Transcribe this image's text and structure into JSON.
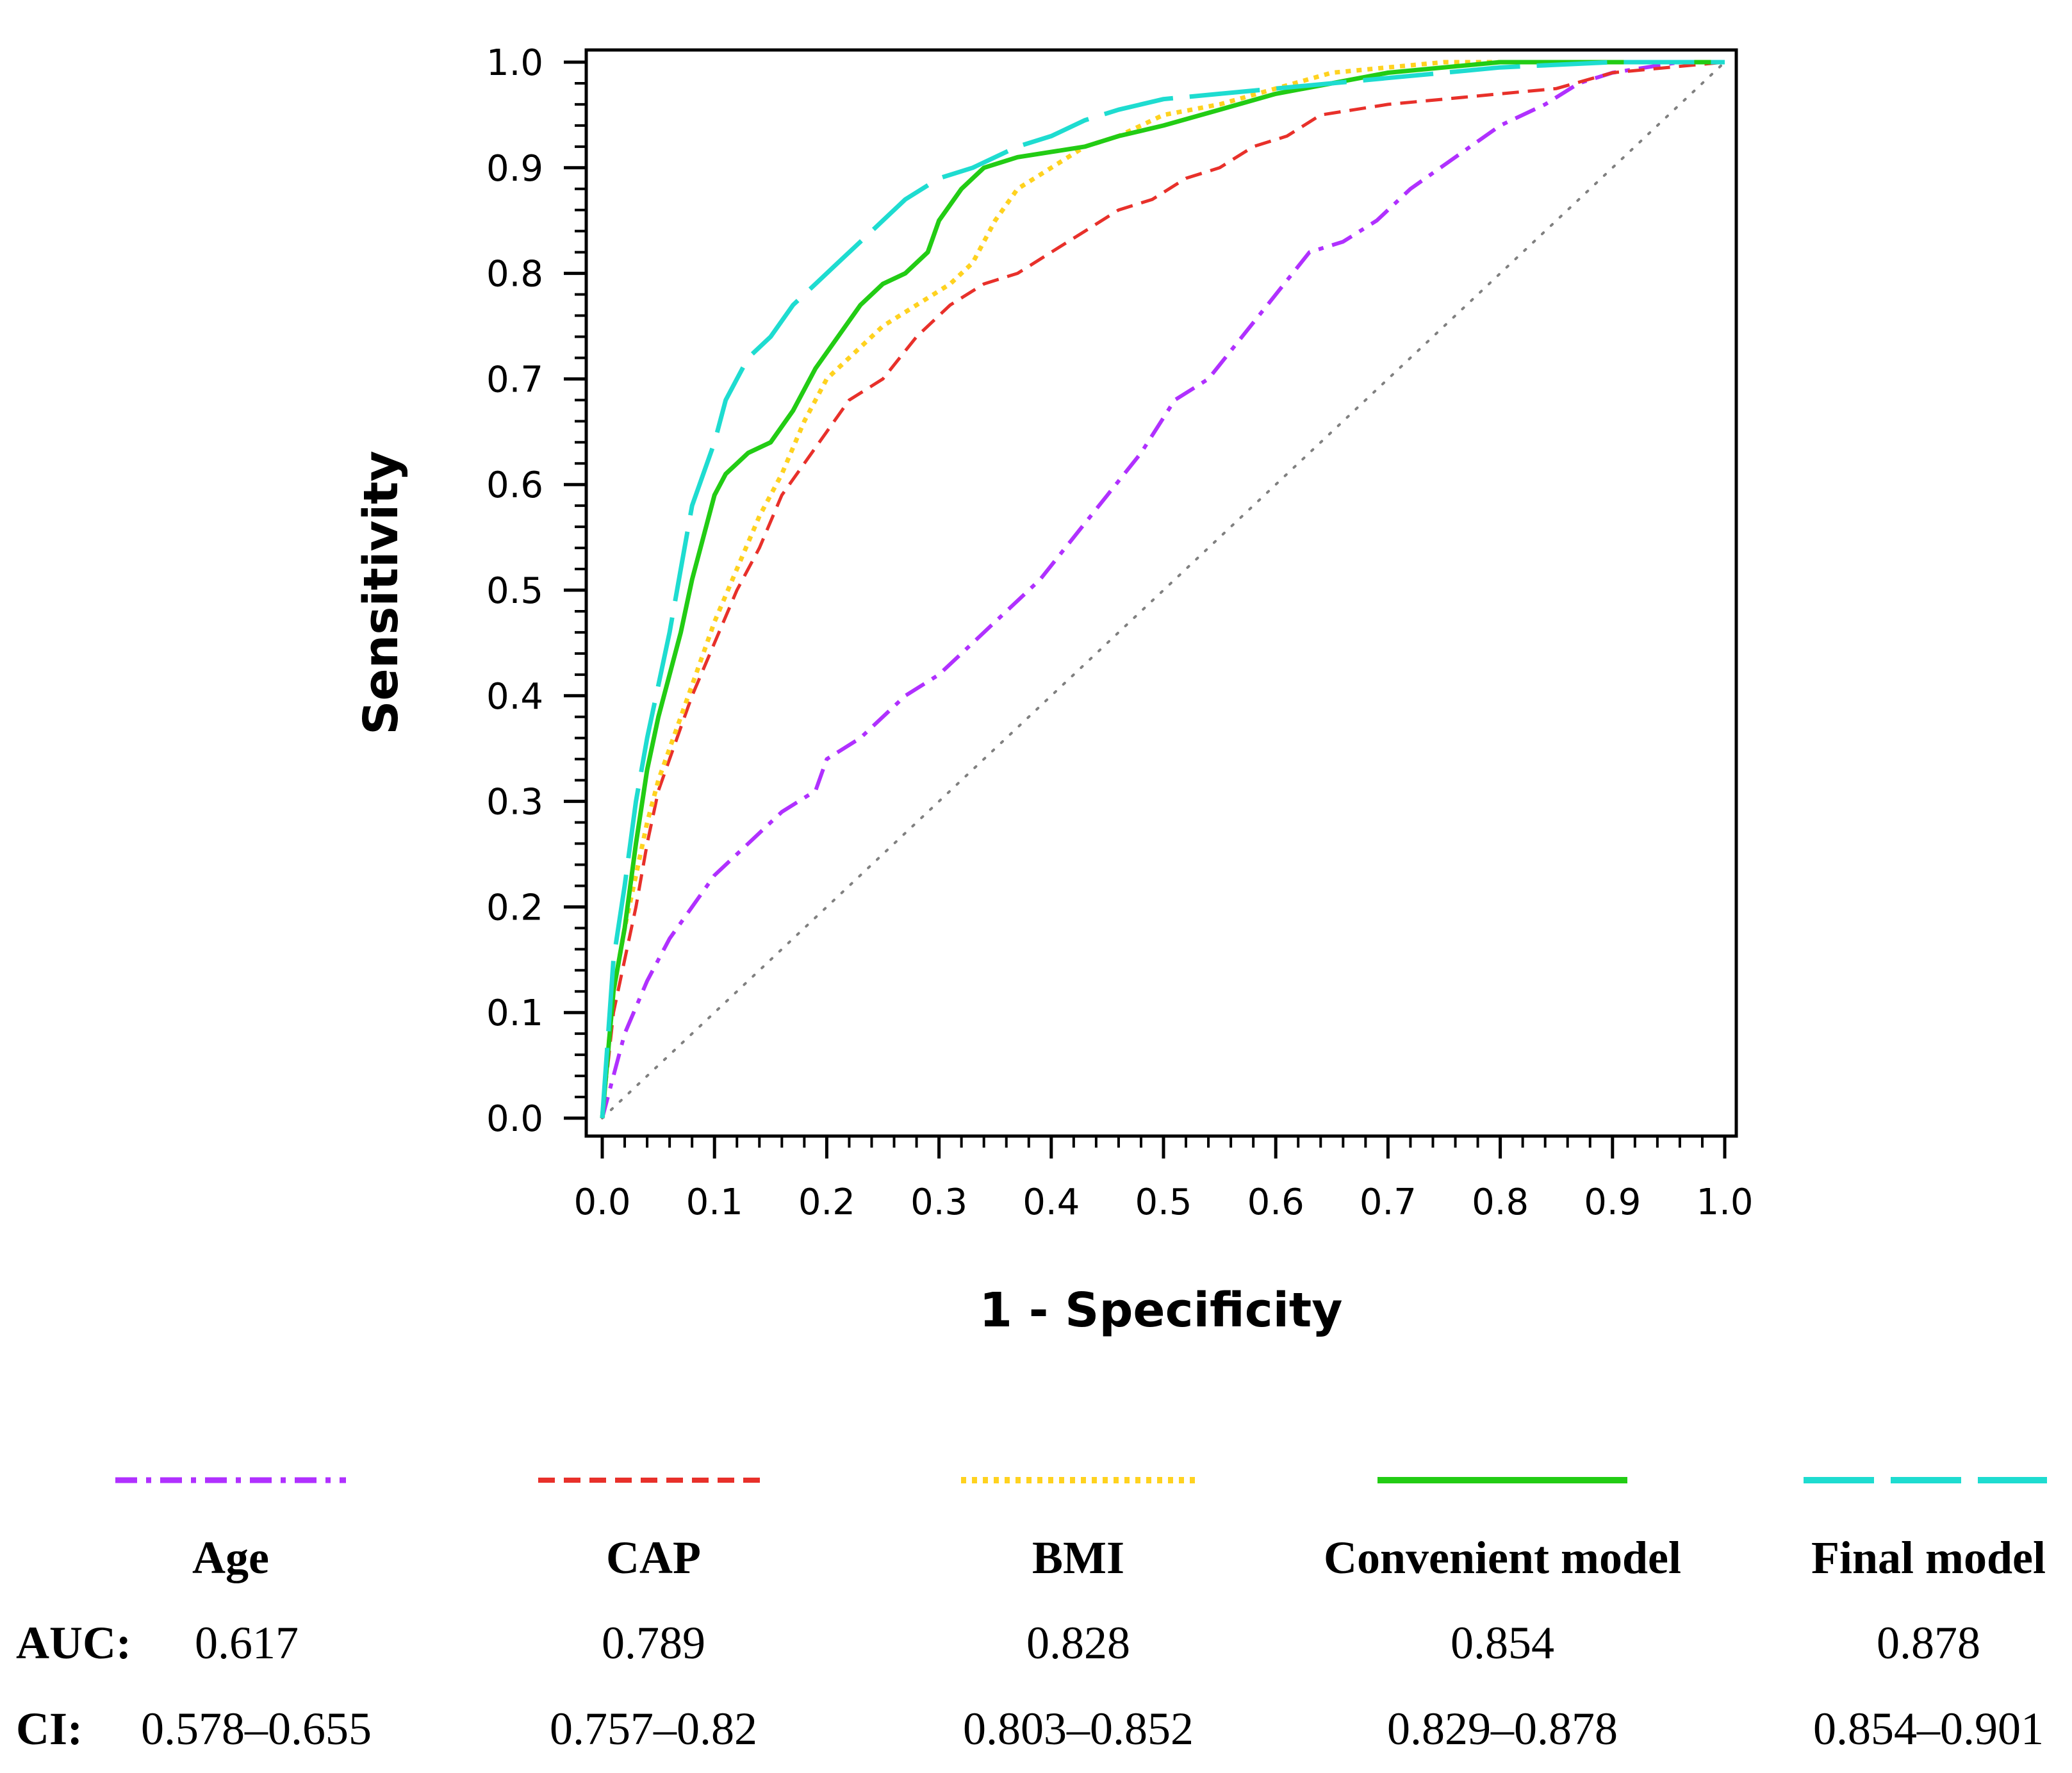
{
  "chart_data": {
    "type": "line",
    "xlabel": "1 - Specificity",
    "ylabel": "Sensitivity",
    "xlim": [
      0,
      1
    ],
    "ylim": [
      0,
      1
    ],
    "x_ticks": [
      "0.0",
      "0.1",
      "0.2",
      "0.3",
      "0.4",
      "0.5",
      "0.6",
      "0.7",
      "0.8",
      "0.9",
      "1.0"
    ],
    "y_ticks": [
      "0.0",
      "0.1",
      "0.2",
      "0.3",
      "0.4",
      "0.5",
      "0.6",
      "0.7",
      "0.8",
      "0.9",
      "1.0"
    ],
    "grid": false,
    "legend_placement": "bottom",
    "reference_line": {
      "x": [
        0,
        1
      ],
      "y": [
        0,
        1
      ],
      "color": "#808080",
      "style": "dotted"
    },
    "row_labels": {
      "auc": "AUC:",
      "ci": "CI:"
    },
    "series": [
      {
        "name": "Age",
        "auc": "0.617",
        "ci": "0.578–0.655",
        "color": "#b030ff",
        "style": "dashdot",
        "x": [
          0,
          0.01,
          0.02,
          0.04,
          0.06,
          0.08,
          0.1,
          0.13,
          0.16,
          0.19,
          0.2,
          0.23,
          0.27,
          0.3,
          0.33,
          0.36,
          0.39,
          0.42,
          0.45,
          0.48,
          0.51,
          0.54,
          0.57,
          0.6,
          0.63,
          0.66,
          0.69,
          0.72,
          0.76,
          0.8,
          0.84,
          0.87,
          0.9,
          0.93,
          0.96,
          1.0
        ],
        "y": [
          0,
          0.04,
          0.08,
          0.13,
          0.17,
          0.2,
          0.23,
          0.26,
          0.29,
          0.31,
          0.34,
          0.36,
          0.4,
          0.42,
          0.45,
          0.48,
          0.51,
          0.55,
          0.59,
          0.63,
          0.68,
          0.7,
          0.74,
          0.78,
          0.82,
          0.83,
          0.85,
          0.88,
          0.91,
          0.94,
          0.96,
          0.98,
          0.99,
          0.995,
          1.0,
          1.0
        ]
      },
      {
        "name": "CAP",
        "auc": "0.789",
        "ci": "0.757–0.82",
        "color": "#e8302a",
        "style": "dashed",
        "x": [
          0,
          0.01,
          0.02,
          0.03,
          0.04,
          0.05,
          0.06,
          0.07,
          0.08,
          0.1,
          0.12,
          0.14,
          0.16,
          0.18,
          0.2,
          0.22,
          0.25,
          0.28,
          0.31,
          0.34,
          0.37,
          0.4,
          0.43,
          0.46,
          0.49,
          0.52,
          0.55,
          0.58,
          0.61,
          0.64,
          0.67,
          0.7,
          0.75,
          0.8,
          0.85,
          0.9,
          0.95,
          1.0
        ],
        "y": [
          0,
          0.1,
          0.15,
          0.2,
          0.26,
          0.31,
          0.34,
          0.37,
          0.4,
          0.45,
          0.5,
          0.54,
          0.59,
          0.62,
          0.65,
          0.68,
          0.7,
          0.74,
          0.77,
          0.79,
          0.8,
          0.82,
          0.84,
          0.86,
          0.87,
          0.89,
          0.9,
          0.92,
          0.93,
          0.95,
          0.955,
          0.96,
          0.965,
          0.97,
          0.975,
          0.99,
          0.995,
          1.0
        ]
      },
      {
        "name": "BMI",
        "auc": "0.828",
        "ci": "0.803–0.852",
        "color": "#ffd21f",
        "style": "dotted",
        "x": [
          0,
          0.01,
          0.02,
          0.03,
          0.04,
          0.05,
          0.06,
          0.08,
          0.1,
          0.12,
          0.14,
          0.16,
          0.18,
          0.2,
          0.22,
          0.25,
          0.28,
          0.31,
          0.33,
          0.35,
          0.37,
          0.4,
          0.43,
          0.46,
          0.5,
          0.55,
          0.6,
          0.65,
          0.7,
          0.75,
          0.8,
          0.9,
          1.0
        ],
        "y": [
          0,
          0.12,
          0.18,
          0.23,
          0.28,
          0.32,
          0.35,
          0.41,
          0.47,
          0.52,
          0.57,
          0.61,
          0.66,
          0.7,
          0.72,
          0.75,
          0.77,
          0.79,
          0.81,
          0.85,
          0.88,
          0.9,
          0.92,
          0.93,
          0.95,
          0.96,
          0.975,
          0.99,
          0.995,
          1.0,
          1.0,
          1.0,
          1.0
        ]
      },
      {
        "name": "Convenient model",
        "auc": "0.854",
        "ci": "0.829–0.878",
        "color": "#22cc14",
        "style": "solid",
        "x": [
          0,
          0.01,
          0.02,
          0.03,
          0.04,
          0.05,
          0.06,
          0.07,
          0.08,
          0.09,
          0.1,
          0.11,
          0.13,
          0.15,
          0.17,
          0.19,
          0.21,
          0.23,
          0.25,
          0.27,
          0.29,
          0.3,
          0.32,
          0.34,
          0.37,
          0.4,
          0.43,
          0.46,
          0.5,
          0.55,
          0.6,
          0.65,
          0.7,
          0.75,
          0.8,
          0.9,
          1.0
        ],
        "y": [
          0,
          0.12,
          0.18,
          0.26,
          0.33,
          0.38,
          0.42,
          0.46,
          0.51,
          0.55,
          0.59,
          0.61,
          0.63,
          0.64,
          0.67,
          0.71,
          0.74,
          0.77,
          0.79,
          0.8,
          0.82,
          0.85,
          0.88,
          0.9,
          0.91,
          0.915,
          0.92,
          0.93,
          0.94,
          0.955,
          0.97,
          0.98,
          0.99,
          0.995,
          1.0,
          1.0,
          1.0
        ]
      },
      {
        "name": "Final model",
        "auc": "0.878",
        "ci": "0.854–0.901",
        "color": "#1edcd0",
        "style": "longdash",
        "x": [
          0,
          0.01,
          0.02,
          0.03,
          0.04,
          0.05,
          0.06,
          0.07,
          0.08,
          0.09,
          0.1,
          0.11,
          0.12,
          0.13,
          0.15,
          0.17,
          0.19,
          0.21,
          0.23,
          0.25,
          0.27,
          0.3,
          0.33,
          0.37,
          0.4,
          0.43,
          0.46,
          0.5,
          0.55,
          0.6,
          0.65,
          0.7,
          0.75,
          0.8,
          0.9,
          1.0
        ],
        "y": [
          0,
          0.15,
          0.22,
          0.3,
          0.36,
          0.41,
          0.46,
          0.52,
          0.58,
          0.61,
          0.64,
          0.68,
          0.7,
          0.72,
          0.74,
          0.77,
          0.79,
          0.81,
          0.83,
          0.85,
          0.87,
          0.89,
          0.9,
          0.92,
          0.93,
          0.945,
          0.955,
          0.965,
          0.97,
          0.975,
          0.98,
          0.985,
          0.99,
          0.995,
          1.0,
          1.0
        ]
      }
    ]
  }
}
